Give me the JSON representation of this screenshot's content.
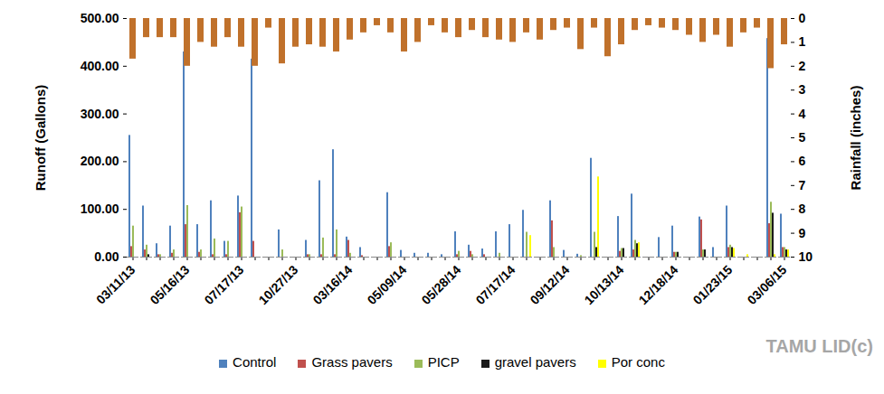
{
  "chart_data": {
    "type": "bar",
    "y_label": "Runoff (Gallons)",
    "y2_label": "Rainfall (inches)",
    "annotation": "TAMU LID(c)",
    "categories": [
      "03/11/13",
      null,
      null,
      null,
      "05/16/13",
      null,
      null,
      null,
      "07/17/13",
      null,
      null,
      null,
      "10/27/13",
      null,
      null,
      null,
      "03/16/14",
      null,
      null,
      null,
      "05/09/14",
      null,
      null,
      null,
      "05/28/14",
      null,
      null,
      null,
      "07/17/14",
      null,
      null,
      null,
      "09/12/14",
      null,
      null,
      null,
      "10/13/14",
      null,
      null,
      null,
      "12/18/14",
      null,
      null,
      null,
      "01/23/15",
      null,
      null,
      null,
      "03/06/15"
    ],
    "ylim": [
      0,
      500
    ],
    "yticks": [
      {
        "value": 0,
        "label": "0.00"
      },
      {
        "value": 100,
        "label": "100.00"
      },
      {
        "value": 200,
        "label": "200.00"
      },
      {
        "value": 300,
        "label": "300.00"
      },
      {
        "value": 400,
        "label": "400.00"
      },
      {
        "value": 500,
        "label": "500.00"
      }
    ],
    "y2lim": [
      10,
      0
    ],
    "y2ticks": [
      0,
      1,
      2,
      3,
      4,
      5,
      6,
      7,
      8,
      9,
      10
    ],
    "grid": false,
    "legend": "bottom",
    "series": [
      {
        "name": "Control",
        "color": "#4f81bd",
        "values": [
          255,
          107,
          28,
          65,
          430,
          68,
          118,
          33,
          128,
          415,
          0,
          57,
          0,
          35,
          160,
          225,
          42,
          20,
          0,
          135,
          14,
          8,
          8,
          5,
          53,
          25,
          17,
          53,
          68,
          98,
          0,
          118,
          14,
          6,
          207,
          0,
          85,
          132,
          0,
          41,
          65,
          0,
          84,
          20,
          107,
          0,
          0,
          458,
          90
        ]
      },
      {
        "name": "Grass pavers",
        "color": "#c0504d",
        "values": [
          22,
          15,
          5,
          8,
          68,
          10,
          5,
          5,
          93,
          33,
          0,
          0,
          0,
          5,
          5,
          5,
          35,
          3,
          0,
          22,
          0,
          0,
          0,
          0,
          5,
          12,
          5,
          0,
          0,
          0,
          0,
          76,
          0,
          0,
          0,
          0,
          12,
          15,
          0,
          0,
          10,
          0,
          78,
          0,
          20,
          0,
          0,
          70,
          20
        ]
      },
      {
        "name": "PICP",
        "color": "#9bbb59",
        "values": [
          65,
          25,
          5,
          15,
          108,
          15,
          38,
          33,
          105,
          0,
          0,
          15,
          0,
          5,
          40,
          57,
          8,
          0,
          0,
          30,
          0,
          0,
          0,
          0,
          12,
          5,
          0,
          8,
          0,
          52,
          0,
          20,
          0,
          3,
          52,
          0,
          18,
          35,
          0,
          0,
          10,
          0,
          15,
          0,
          25,
          0,
          0,
          115,
          20
        ]
      },
      {
        "name": "gravel pavers",
        "color": "#1a1a1a",
        "values": [
          0,
          5,
          0,
          0,
          0,
          0,
          0,
          0,
          0,
          0,
          0,
          0,
          0,
          0,
          0,
          0,
          0,
          0,
          0,
          0,
          0,
          0,
          0,
          0,
          0,
          0,
          0,
          0,
          0,
          0,
          0,
          0,
          0,
          0,
          20,
          0,
          18,
          28,
          0,
          0,
          10,
          0,
          15,
          0,
          20,
          0,
          0,
          92,
          15
        ]
      },
      {
        "name": "Por conc",
        "color": "#ffff00",
        "values": [
          0,
          0,
          0,
          0,
          0,
          0,
          0,
          0,
          0,
          0,
          0,
          0,
          0,
          0,
          0,
          0,
          0,
          0,
          0,
          0,
          0,
          0,
          0,
          0,
          0,
          0,
          0,
          0,
          0,
          45,
          0,
          0,
          0,
          0,
          168,
          0,
          0,
          30,
          0,
          0,
          0,
          0,
          0,
          0,
          18,
          5,
          0,
          5,
          15
        ]
      },
      {
        "name": "Rainfall (inches)",
        "axis": "y2",
        "color": "#c0712b",
        "values": [
          1.7,
          0.8,
          0.8,
          0.8,
          2.0,
          1.0,
          1.2,
          0.8,
          1.2,
          2.0,
          0.4,
          1.9,
          1.2,
          1.1,
          1.2,
          1.4,
          0.9,
          0.6,
          0.3,
          0.6,
          1.4,
          1.0,
          0.3,
          0.6,
          0.8,
          0.5,
          0.8,
          0.9,
          1.0,
          0.6,
          0.9,
          0.5,
          0.4,
          1.3,
          0.4,
          1.6,
          1.1,
          0.5,
          0.3,
          0.4,
          0.5,
          0.7,
          1.0,
          0.7,
          1.2,
          0.6,
          0.4,
          2.1,
          1.1
        ]
      }
    ]
  }
}
